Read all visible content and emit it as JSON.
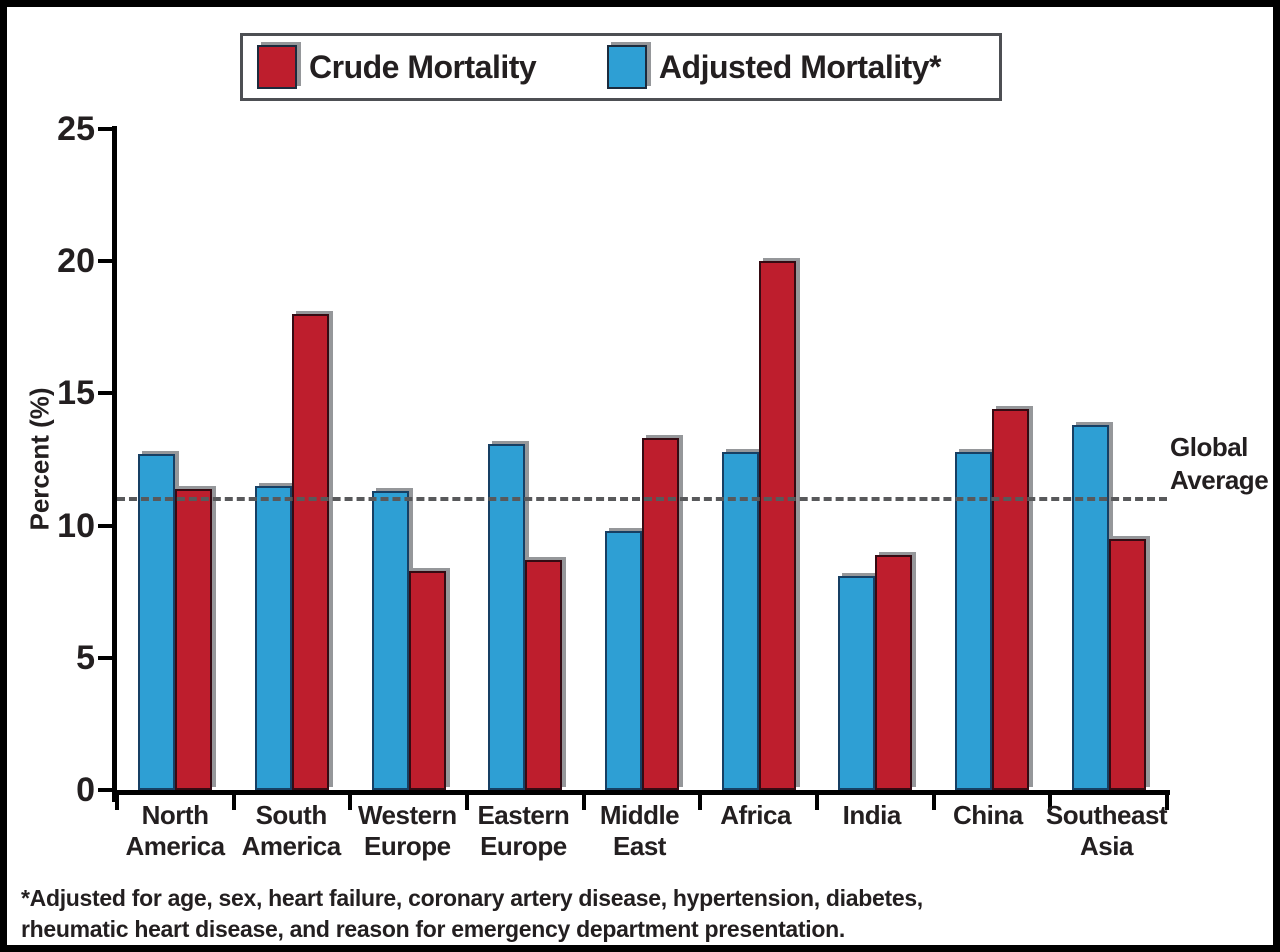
{
  "figure": {
    "background": "#ffffff",
    "border_color": "#000000",
    "shadow_color": "#95979a"
  },
  "legend": {
    "items": [
      {
        "label": "Crude Mortality",
        "color": "#be1e2d"
      },
      {
        "label": "Adjusted Mortality*",
        "color": "#2e9fd4"
      }
    ]
  },
  "chart_data": {
    "type": "bar",
    "title": "",
    "xlabel": "",
    "ylabel": "Percent (%)",
    "ylim": [
      0,
      25
    ],
    "yticks": [
      0,
      5,
      10,
      15,
      20,
      25
    ],
    "grid": false,
    "legend_position": "top",
    "categories": [
      "North America",
      "South America",
      "Western Europe",
      "Eastern Europe",
      "Middle East",
      "Africa",
      "India",
      "China",
      "Southeast Asia"
    ],
    "category_labels": [
      "North\nAmerica",
      "South\nAmerica",
      "Western\nEurope",
      "Eastern\nEurope",
      "Middle\nEast",
      "Africa",
      "India",
      "China",
      "Southeast\nAsia"
    ],
    "series": [
      {
        "name": "Adjusted Mortality*",
        "color": "#2e9fd4",
        "border_color": "#173f63",
        "values": [
          12.7,
          11.5,
          11.3,
          13.1,
          9.8,
          12.8,
          8.1,
          12.8,
          13.8
        ]
      },
      {
        "name": "Crude Mortality",
        "color": "#be1e2d",
        "border_color": "#350b13",
        "values": [
          11.4,
          18.0,
          8.3,
          8.7,
          13.3,
          20.0,
          8.9,
          14.4,
          9.5
        ]
      }
    ],
    "reference_line": {
      "value": 11,
      "label": "Global\nAverage",
      "style": "dashed",
      "color": "#58595b"
    }
  },
  "footnote": {
    "text": "*Adjusted for age, sex, heart failure, coronary artery disease, hypertension, diabetes,\nrheumatic heart disease, and reason for emergency department presentation."
  }
}
